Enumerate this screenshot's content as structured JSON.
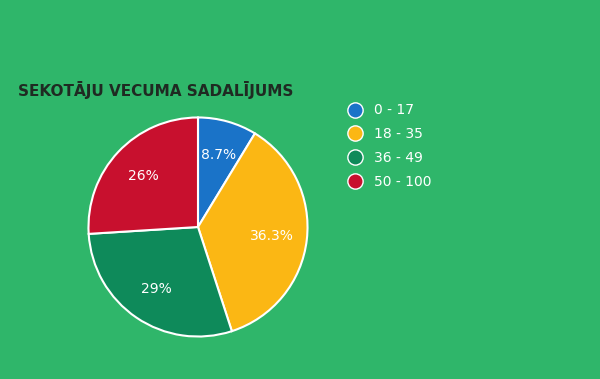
{
  "chart_data": {
    "type": "pie",
    "title": "SEKOTĀJU VECUMA SADALĪJUMS",
    "categories": [
      "0 - 17",
      "18 - 35",
      "36 - 49",
      "50 - 100"
    ],
    "values": [
      8.7,
      36.3,
      29,
      26
    ],
    "value_labels": [
      "8.7%",
      "36.3%",
      "29%",
      "26%"
    ],
    "colors": [
      "#1a73c8",
      "#fbb714",
      "#0e8a5a",
      "#c8102e"
    ],
    "legend": "upper right",
    "data_labels": true
  }
}
